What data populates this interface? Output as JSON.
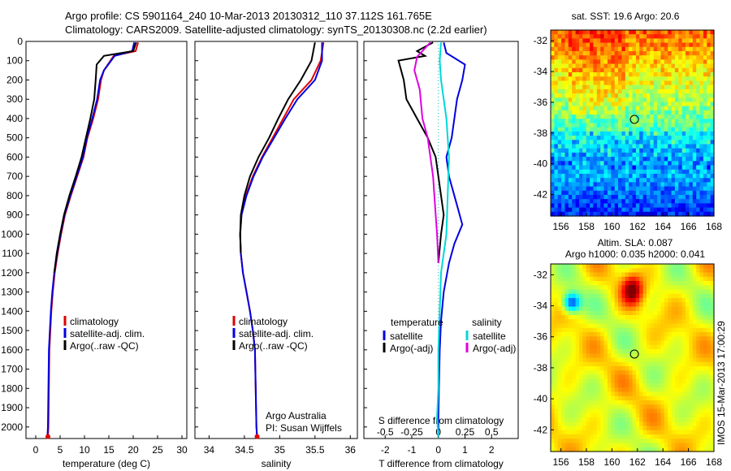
{
  "titles": {
    "line1": "Argo profile: CS 5901164_240 10-Mar-2013 20130312_110 37.112S 161.765E",
    "line2": "Climatology: CARS2009. Satellite-adjusted climatology: synTS_20130308.nc (2.2d earlier)"
  },
  "colors": {
    "climatology": "#e00000",
    "satellite": "#0000e0",
    "argo": "#000000",
    "sat_salinity": "#00d8d8",
    "argo_salinity": "#e000e0"
  },
  "chart_data": [
    {
      "type": "line",
      "name": "temperature-profile",
      "xlabel": "temperature (deg C)",
      "xlim": [
        -2,
        31
      ],
      "ylim": [
        2060,
        0
      ],
      "xticks": [
        0,
        5,
        10,
        15,
        20,
        25,
        30
      ],
      "yticks": [
        0,
        100,
        200,
        300,
        400,
        500,
        600,
        700,
        800,
        900,
        1000,
        1100,
        1200,
        1300,
        1400,
        1500,
        1600,
        1700,
        1800,
        1900,
        2000
      ],
      "legend": [
        "climatology",
        "satellite-adj. clim.",
        "Argo(..raw -QC)"
      ],
      "legend_position": "lower-right",
      "series": [
        {
          "name": "climatology",
          "color": "#e00000",
          "x": [
            21.0,
            20.5,
            16.0,
            14.0,
            13.4,
            12.8,
            11.8,
            10.6,
            9.8,
            8.5,
            7.2,
            6.0,
            5.2,
            4.5,
            3.9,
            3.5,
            3.2,
            3.0,
            2.8,
            2.7,
            2.6,
            2.5
          ],
          "y": [
            5,
            50,
            75,
            150,
            200,
            300,
            400,
            500,
            600,
            700,
            800,
            900,
            1000,
            1100,
            1200,
            1300,
            1400,
            1500,
            1600,
            1800,
            2000,
            2050
          ]
        },
        {
          "name": "satellite-adj. clim.",
          "color": "#0000e0",
          "x": [
            20.2,
            19.8,
            16.2,
            14.0,
            13.2,
            12.6,
            11.6,
            10.5,
            9.7,
            8.4,
            7.1,
            5.9,
            5.1,
            4.4,
            3.8,
            3.4,
            3.1,
            2.9,
            2.7,
            2.6,
            2.5,
            2.4
          ],
          "y": [
            5,
            50,
            75,
            150,
            200,
            300,
            400,
            500,
            600,
            700,
            800,
            900,
            1000,
            1100,
            1200,
            1300,
            1400,
            1500,
            1600,
            1800,
            2000,
            2050
          ]
        },
        {
          "name": "Argo(..raw -QC)",
          "color": "#000000",
          "x": [
            20.6,
            20.0,
            14.0,
            12.5,
            12.3,
            12.0,
            11.2,
            10.3,
            9.4,
            8.2,
            6.9,
            5.8,
            5.0,
            4.3,
            3.8
          ],
          "y": [
            5,
            50,
            75,
            120,
            200,
            300,
            400,
            500,
            600,
            700,
            800,
            900,
            1000,
            1100,
            1200
          ]
        }
      ]
    },
    {
      "type": "line",
      "name": "salinity-profile",
      "xlabel": "salinity",
      "xlim": [
        33.8,
        36.1
      ],
      "ylim": [
        2060,
        0
      ],
      "xticks": [
        34,
        34.5,
        35,
        35.5,
        36
      ],
      "xticklabels": [
        "34",
        "34.5",
        "35",
        "35.5",
        "36"
      ],
      "legend": [
        "climatology",
        "satellite-adj. clim.",
        "Argo(..raw -QC)"
      ],
      "legend_position": "lower-right",
      "annotations": [
        "Argo Australia",
        "PI: Susan Wijffels"
      ],
      "series": [
        {
          "name": "climatology",
          "color": "#e00000",
          "x": [
            35.62,
            35.58,
            35.45,
            35.2,
            35.05,
            34.9,
            34.75,
            34.62,
            34.52,
            34.46,
            34.44,
            34.45,
            34.48,
            34.53,
            34.58,
            34.62,
            34.65,
            34.66,
            34.67,
            34.68
          ],
          "y": [
            5,
            100,
            200,
            300,
            400,
            500,
            600,
            700,
            800,
            900,
            1000,
            1100,
            1200,
            1300,
            1400,
            1500,
            1600,
            1800,
            2000,
            2050
          ]
        },
        {
          "name": "satellite-adj. clim.",
          "color": "#0000e0",
          "x": [
            35.6,
            35.6,
            35.5,
            35.25,
            35.08,
            34.92,
            34.76,
            34.63,
            34.53,
            34.46,
            34.44,
            34.45,
            34.48,
            34.53,
            34.58,
            34.62,
            34.65,
            34.66,
            34.67,
            34.68
          ],
          "y": [
            5,
            100,
            200,
            300,
            400,
            500,
            600,
            700,
            800,
            900,
            1000,
            1100,
            1200,
            1300,
            1400,
            1500,
            1600,
            1800,
            2000,
            2050
          ]
        },
        {
          "name": "Argo(..raw -QC)",
          "color": "#000000",
          "x": [
            35.5,
            35.45,
            35.3,
            35.12,
            34.98,
            34.85,
            34.7,
            34.58,
            34.5,
            34.45,
            34.44,
            34.45
          ],
          "y": [
            5,
            100,
            200,
            300,
            400,
            500,
            600,
            700,
            800,
            900,
            1000,
            1100
          ]
        }
      ]
    },
    {
      "type": "line",
      "name": "difference-profile",
      "xlabel": "T difference from climatology",
      "xlabel_top": "S difference from climatology",
      "xlim": [
        -2.8,
        3.0
      ],
      "ylim": [
        2060,
        0
      ],
      "xticks": [
        -2,
        -1,
        0,
        1,
        2
      ],
      "xticks_top": [
        -0.5,
        -0.25,
        0,
        0.25,
        0.5
      ],
      "xticks_top_labels": [
        "-0.5",
        "-0.25",
        "0",
        "0.25",
        "0.5"
      ],
      "legend_groups": [
        {
          "title": "temperature",
          "items": [
            "satellite",
            "Argo(-adj)"
          ]
        },
        {
          "title": "salinity",
          "items": [
            "satellite",
            "Argo(-adj)"
          ]
        }
      ],
      "legend_position": "lower-right",
      "series": [
        {
          "name": "temperature satellite",
          "color": "#0000e0",
          "x": [
            0.2,
            0.3,
            1.0,
            0.9,
            0.7,
            0.6,
            0.5,
            0.3,
            0.4,
            0.7,
            0.9,
            0.6,
            0.4,
            0.2,
            0.1,
            0.05,
            0.02,
            0,
            0
          ],
          "y": [
            5,
            60,
            120,
            200,
            300,
            400,
            500,
            600,
            700,
            850,
            950,
            1050,
            1150,
            1300,
            1450,
            1600,
            1800,
            1950,
            2050
          ]
        },
        {
          "name": "temperature Argo(-adj)",
          "color": "#000000",
          "x": [
            -0.2,
            -0.8,
            -0.5,
            -1.5,
            -1.3,
            -1.2,
            -0.8,
            -0.4,
            -0.1,
            0.1,
            0.2,
            0.1,
            0.0
          ],
          "y": [
            5,
            50,
            75,
            100,
            200,
            300,
            400,
            500,
            600,
            800,
            900,
            1000,
            1150
          ]
        },
        {
          "name": "salinity satellite",
          "color": "#00d8d8",
          "x": [
            0.1,
            0.05,
            0.1,
            0.2,
            0.3,
            0.4,
            0.35,
            0.3,
            0.2,
            0.1,
            0.05,
            0,
            0,
            -0.05,
            0
          ],
          "y": [
            5,
            100,
            200,
            300,
            400,
            600,
            800,
            1000,
            1100,
            1200,
            1400,
            1600,
            1800,
            1950,
            2050
          ]
        },
        {
          "name": "salinity Argo(-adj)",
          "color": "#e000e0",
          "x": [
            -0.3,
            -0.8,
            -0.9,
            -0.7,
            -0.6,
            -0.4,
            -0.2,
            -0.1,
            -0.05,
            0
          ],
          "y": [
            5,
            80,
            150,
            250,
            400,
            500,
            700,
            900,
            1000,
            1150
          ]
        }
      ]
    },
    {
      "type": "heatmap",
      "name": "sst-map",
      "title": "sat. SST: 19.6  Argo: 20.6",
      "xlim": [
        155.2,
        168
      ],
      "ylim": [
        -43.4,
        -31.3
      ],
      "xticks": [
        156,
        158,
        160,
        162,
        164,
        166,
        168
      ],
      "yticks": [
        -32,
        -34,
        -36,
        -38,
        -40,
        -42
      ],
      "marker": {
        "lon": 161.765,
        "lat": -37.112
      },
      "sat_sst": 19.6,
      "argo_sst": 20.6
    },
    {
      "type": "heatmap",
      "name": "sla-map",
      "title": "Altim. SLA: 0.087",
      "subtitle": "Argo h1000: 0.035  h2000: 0.041",
      "xlim": [
        155.2,
        168
      ],
      "ylim": [
        -43.4,
        -31.3
      ],
      "xticks": [
        156,
        158,
        160,
        162,
        164,
        166,
        168
      ],
      "yticks": [
        -32,
        -34,
        -36,
        -38,
        -40,
        -42
      ],
      "marker": {
        "lon": 161.765,
        "lat": -37.112
      },
      "sla": 0.087,
      "h1000": 0.035,
      "h2000": 0.041
    }
  ],
  "footer": {
    "stamp": "IMOS 15-Mar-2013 17:00:29"
  }
}
